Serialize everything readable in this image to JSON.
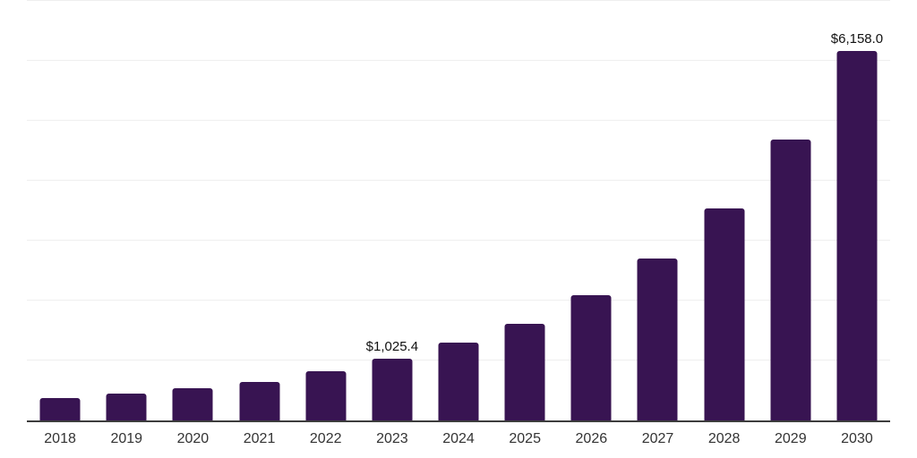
{
  "chart_data": {
    "type": "bar",
    "title": "",
    "xlabel": "",
    "ylabel": "",
    "categories": [
      "2018",
      "2019",
      "2020",
      "2021",
      "2022",
      "2023",
      "2024",
      "2025",
      "2026",
      "2027",
      "2028",
      "2029",
      "2030"
    ],
    "values": [
      375,
      450,
      535,
      640,
      820,
      1025.4,
      1300,
      1610,
      2090,
      2700,
      3540,
      4690,
      6158.0
    ],
    "data_labels": {
      "2023": "$1,025.4",
      "2030": "$6,158.0"
    },
    "ylim": [
      0,
      7000
    ],
    "gridline_interval": 1000,
    "grid": true,
    "legend_position": "none",
    "y_axis_labels_visible": false,
    "colors": {
      "bar": "#381452",
      "grid": "#efefef",
      "axis": "#3d3d3d",
      "tick_label": "#333333",
      "data_label": "#111111",
      "background": "#ffffff"
    }
  }
}
